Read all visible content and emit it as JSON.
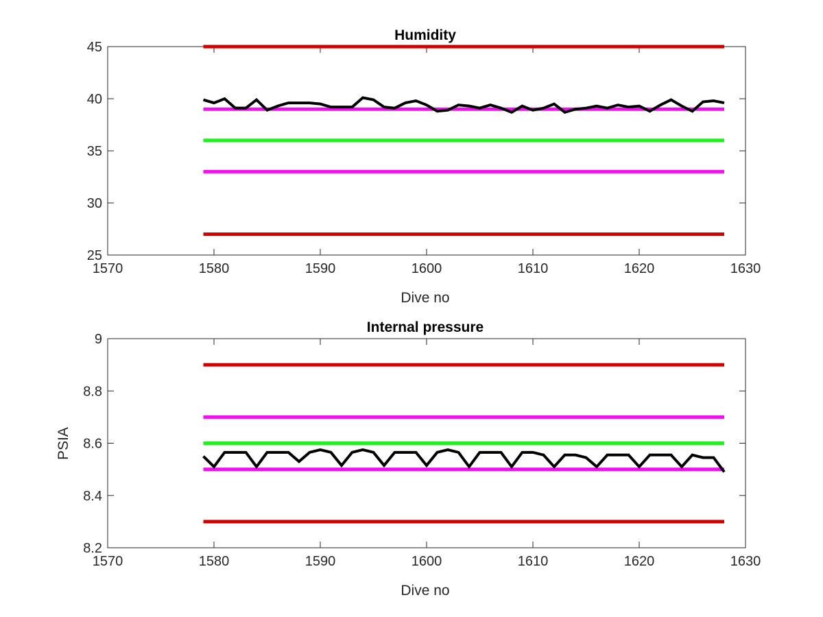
{
  "chart_data": [
    {
      "type": "line",
      "title": "Humidity",
      "xlabel": "Dive no",
      "ylabel": "",
      "xlim": [
        1570,
        1630
      ],
      "ylim": [
        25,
        45
      ],
      "xticks": [
        1570,
        1580,
        1590,
        1600,
        1610,
        1620,
        1630
      ],
      "yticks": [
        25,
        30,
        35,
        40,
        45
      ],
      "xtick_labels": [
        "1570",
        "1580",
        "1590",
        "1600",
        "1610",
        "1620",
        "1630"
      ],
      "ytick_labels": [
        "25",
        "30",
        "35",
        "40",
        "45"
      ],
      "grid": false,
      "legend": "none",
      "threshold_lines": [
        {
          "y": 45,
          "x": [
            1579,
            1628
          ],
          "color": "#d00000"
        },
        {
          "y": 39,
          "x": [
            1579,
            1628
          ],
          "color": "#ee11ee"
        },
        {
          "y": 36,
          "x": [
            1579,
            1628
          ],
          "color": "#22ee22"
        },
        {
          "y": 33,
          "x": [
            1579,
            1628
          ],
          "color": "#ee11ee"
        },
        {
          "y": 27,
          "x": [
            1579,
            1628
          ],
          "color": "#d00000"
        }
      ],
      "series": [
        {
          "color": "#000000",
          "x": [
            1579,
            1580,
            1581,
            1582,
            1583,
            1584,
            1585,
            1586,
            1587,
            1588,
            1589,
            1590,
            1591,
            1592,
            1593,
            1594,
            1595,
            1596,
            1597,
            1598,
            1599,
            1600,
            1601,
            1602,
            1603,
            1604,
            1605,
            1606,
            1607,
            1608,
            1609,
            1610,
            1611,
            1612,
            1613,
            1614,
            1615,
            1616,
            1617,
            1618,
            1619,
            1620,
            1621,
            1622,
            1623,
            1624,
            1625,
            1626,
            1627,
            1628
          ],
          "y": [
            39.9,
            39.6,
            40.0,
            39.1,
            39.1,
            39.9,
            38.9,
            39.3,
            39.6,
            39.6,
            39.6,
            39.5,
            39.2,
            39.2,
            39.2,
            40.1,
            39.9,
            39.2,
            39.1,
            39.6,
            39.8,
            39.4,
            38.8,
            38.9,
            39.4,
            39.3,
            39.1,
            39.4,
            39.1,
            38.7,
            39.3,
            38.9,
            39.1,
            39.5,
            38.7,
            39.0,
            39.1,
            39.3,
            39.1,
            39.4,
            39.2,
            39.3,
            38.8,
            39.4,
            39.9,
            39.3,
            38.8,
            39.7,
            39.8,
            39.6
          ]
        }
      ]
    },
    {
      "type": "line",
      "title": "Internal pressure",
      "xlabel": "Dive no",
      "ylabel": "PSIA",
      "xlim": [
        1570,
        1630
      ],
      "ylim": [
        8.2,
        9.0
      ],
      "xticks": [
        1570,
        1580,
        1590,
        1600,
        1610,
        1620,
        1630
      ],
      "yticks": [
        8.2,
        8.4,
        8.6,
        8.8,
        9.0
      ],
      "xtick_labels": [
        "1570",
        "1580",
        "1590",
        "1600",
        "1610",
        "1620",
        "1630"
      ],
      "ytick_labels": [
        "8.2",
        "8.4",
        "8.6",
        "8.8",
        "9"
      ],
      "grid": false,
      "legend": "none",
      "threshold_lines": [
        {
          "y": 8.9,
          "x": [
            1579,
            1628
          ],
          "color": "#d00000"
        },
        {
          "y": 8.7,
          "x": [
            1579,
            1628
          ],
          "color": "#ee11ee"
        },
        {
          "y": 8.6,
          "x": [
            1579,
            1628
          ],
          "color": "#22ee22"
        },
        {
          "y": 8.5,
          "x": [
            1579,
            1628
          ],
          "color": "#ee11ee"
        },
        {
          "y": 8.3,
          "x": [
            1579,
            1628
          ],
          "color": "#d00000"
        }
      ],
      "series": [
        {
          "color": "#000000",
          "x": [
            1579,
            1580,
            1581,
            1582,
            1583,
            1584,
            1585,
            1586,
            1587,
            1588,
            1589,
            1590,
            1591,
            1592,
            1593,
            1594,
            1595,
            1596,
            1597,
            1598,
            1599,
            1600,
            1601,
            1602,
            1603,
            1604,
            1605,
            1606,
            1607,
            1608,
            1609,
            1610,
            1611,
            1612,
            1613,
            1614,
            1615,
            1616,
            1617,
            1618,
            1619,
            1620,
            1621,
            1622,
            1623,
            1624,
            1625,
            1626,
            1627,
            1628
          ],
          "y": [
            8.55,
            8.51,
            8.565,
            8.565,
            8.565,
            8.51,
            8.565,
            8.565,
            8.565,
            8.53,
            8.565,
            8.575,
            8.565,
            8.515,
            8.565,
            8.575,
            8.565,
            8.515,
            8.565,
            8.565,
            8.565,
            8.515,
            8.565,
            8.575,
            8.565,
            8.51,
            8.565,
            8.565,
            8.565,
            8.51,
            8.565,
            8.565,
            8.555,
            8.51,
            8.555,
            8.555,
            8.545,
            8.51,
            8.555,
            8.555,
            8.555,
            8.51,
            8.555,
            8.555,
            8.555,
            8.51,
            8.555,
            8.545,
            8.545,
            8.49
          ]
        }
      ]
    }
  ]
}
